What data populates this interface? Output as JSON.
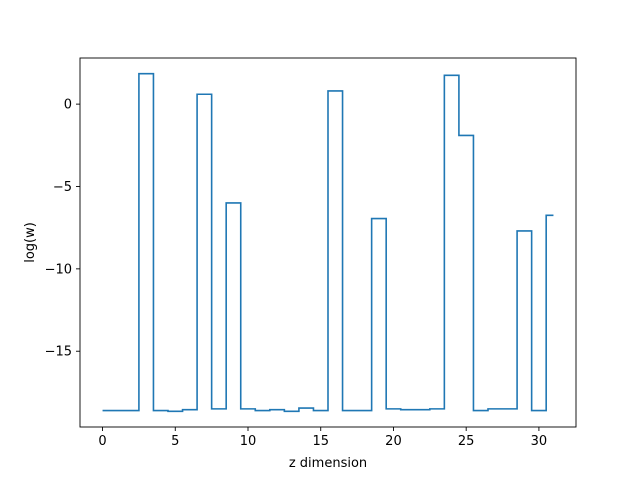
{
  "chart_data": {
    "type": "line",
    "drawstyle": "steps-mid",
    "title": "",
    "xlabel": "z dimension",
    "ylabel": "log(w)",
    "xlim": [
      -1.55,
      32.55
    ],
    "ylim": [
      -19.6,
      2.8
    ],
    "xticks": [
      0,
      5,
      10,
      15,
      20,
      25,
      30
    ],
    "yticks": [
      0,
      -5,
      -10,
      -15
    ],
    "grid": false,
    "legend": "none",
    "series": [
      {
        "color": "#1f77b4",
        "x": [
          0,
          1,
          2,
          3,
          4,
          5,
          6,
          7,
          8,
          9,
          10,
          11,
          12,
          13,
          14,
          15,
          16,
          17,
          18,
          19,
          20,
          21,
          22,
          23,
          24,
          25,
          26,
          27,
          28,
          29,
          30,
          31
        ],
        "values": [
          -18.6,
          -18.6,
          -18.6,
          1.85,
          -18.6,
          -18.65,
          -18.55,
          0.6,
          -18.5,
          -6.0,
          -18.5,
          -18.6,
          -18.55,
          -18.65,
          -18.45,
          -18.6,
          0.8,
          -18.6,
          -18.6,
          -6.95,
          -18.5,
          -18.55,
          -18.55,
          -18.5,
          1.75,
          -1.9,
          -18.6,
          -18.5,
          -18.5,
          -7.7,
          -18.6,
          -6.75
        ]
      }
    ]
  }
}
